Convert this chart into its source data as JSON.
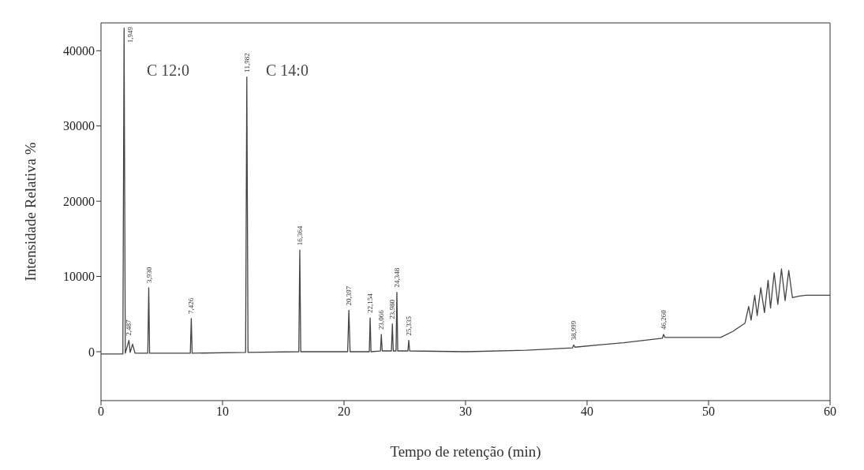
{
  "chart_data": {
    "type": "line",
    "xlabel": "Tempo de retenção (min)",
    "ylabel": "Intensidade Relativa %",
    "xlim": [
      0,
      60
    ],
    "xticks": [
      0,
      10,
      20,
      30,
      40,
      50,
      60
    ],
    "ylim": [
      -6500,
      43700
    ],
    "yticks": [
      0,
      10000,
      20000,
      30000,
      40000
    ],
    "grid": false,
    "legend": false,
    "marker": "none",
    "line_style": "solid",
    "series": [
      {
        "color": "#444444",
        "x": [
          0,
          1.8,
          1.9,
          2.0,
          2.3,
          2.4,
          2.6,
          2.8,
          3.85,
          3.93,
          4.0,
          7.35,
          7.43,
          7.5,
          11.9,
          12.0,
          12.1,
          16.28,
          16.36,
          16.44,
          20.3,
          20.4,
          20.5,
          22.08,
          22.15,
          22.22,
          23.0,
          23.07,
          23.14,
          23.9,
          23.98,
          24.05,
          24.28,
          24.35,
          24.42,
          25.26,
          25.33,
          25.4,
          30,
          35,
          38.8,
          38.9,
          39.0,
          43,
          46.2,
          46.3,
          46.4,
          48,
          51,
          52,
          53,
          53.3,
          53.5,
          53.8,
          54,
          54.3,
          54.6,
          54.9,
          55.1,
          55.4,
          55.7,
          56,
          56.3,
          56.6,
          56.9,
          57.5,
          58,
          60
        ],
        "values": [
          -300,
          -300,
          43000,
          -200,
          1500,
          -100,
          1000,
          -200,
          -200,
          8500,
          -200,
          -200,
          4400,
          -200,
          -100,
          36500,
          -100,
          0,
          13500,
          0,
          0,
          5500,
          0,
          0,
          4500,
          0,
          100,
          2300,
          100,
          100,
          3700,
          100,
          100,
          7900,
          100,
          100,
          1500,
          100,
          0,
          200,
          500,
          900,
          600,
          1200,
          1800,
          2300,
          1900,
          1900,
          1900,
          2700,
          3800,
          6000,
          4200,
          7500,
          4800,
          8500,
          5200,
          9500,
          5800,
          10500,
          6300,
          11000,
          6800,
          10800,
          7200,
          7400,
          7500,
          7500
        ]
      }
    ],
    "annotations": [
      "C 12:0",
      "C 14:0",
      {
        "text": "1,949",
        "x": 1.9,
        "y": 43000
      },
      {
        "text": "2,487",
        "x": 2.3,
        "y": 1500
      },
      {
        "text": "3,930",
        "x": 3.93,
        "y": 8500
      },
      {
        "text": "7,426",
        "x": 7.43,
        "y": 4400
      },
      {
        "text": "11,982",
        "x": 12.0,
        "y": 36500
      },
      {
        "text": "16,364",
        "x": 16.36,
        "y": 13500
      },
      {
        "text": "20,397",
        "x": 20.4,
        "y": 5500
      },
      {
        "text": "22,154",
        "x": 22.15,
        "y": 4500
      },
      {
        "text": "23,066",
        "x": 23.07,
        "y": 2300
      },
      {
        "text": "23,980",
        "x": 23.98,
        "y": 3700
      },
      {
        "text": "24,348",
        "x": 24.35,
        "y": 7900
      },
      {
        "text": "25,335",
        "x": 25.33,
        "y": 1500
      },
      {
        "text": "38,999",
        "x": 38.9,
        "y": 900
      },
      {
        "text": "46,260",
        "x": 46.3,
        "y": 2300
      }
    ]
  }
}
